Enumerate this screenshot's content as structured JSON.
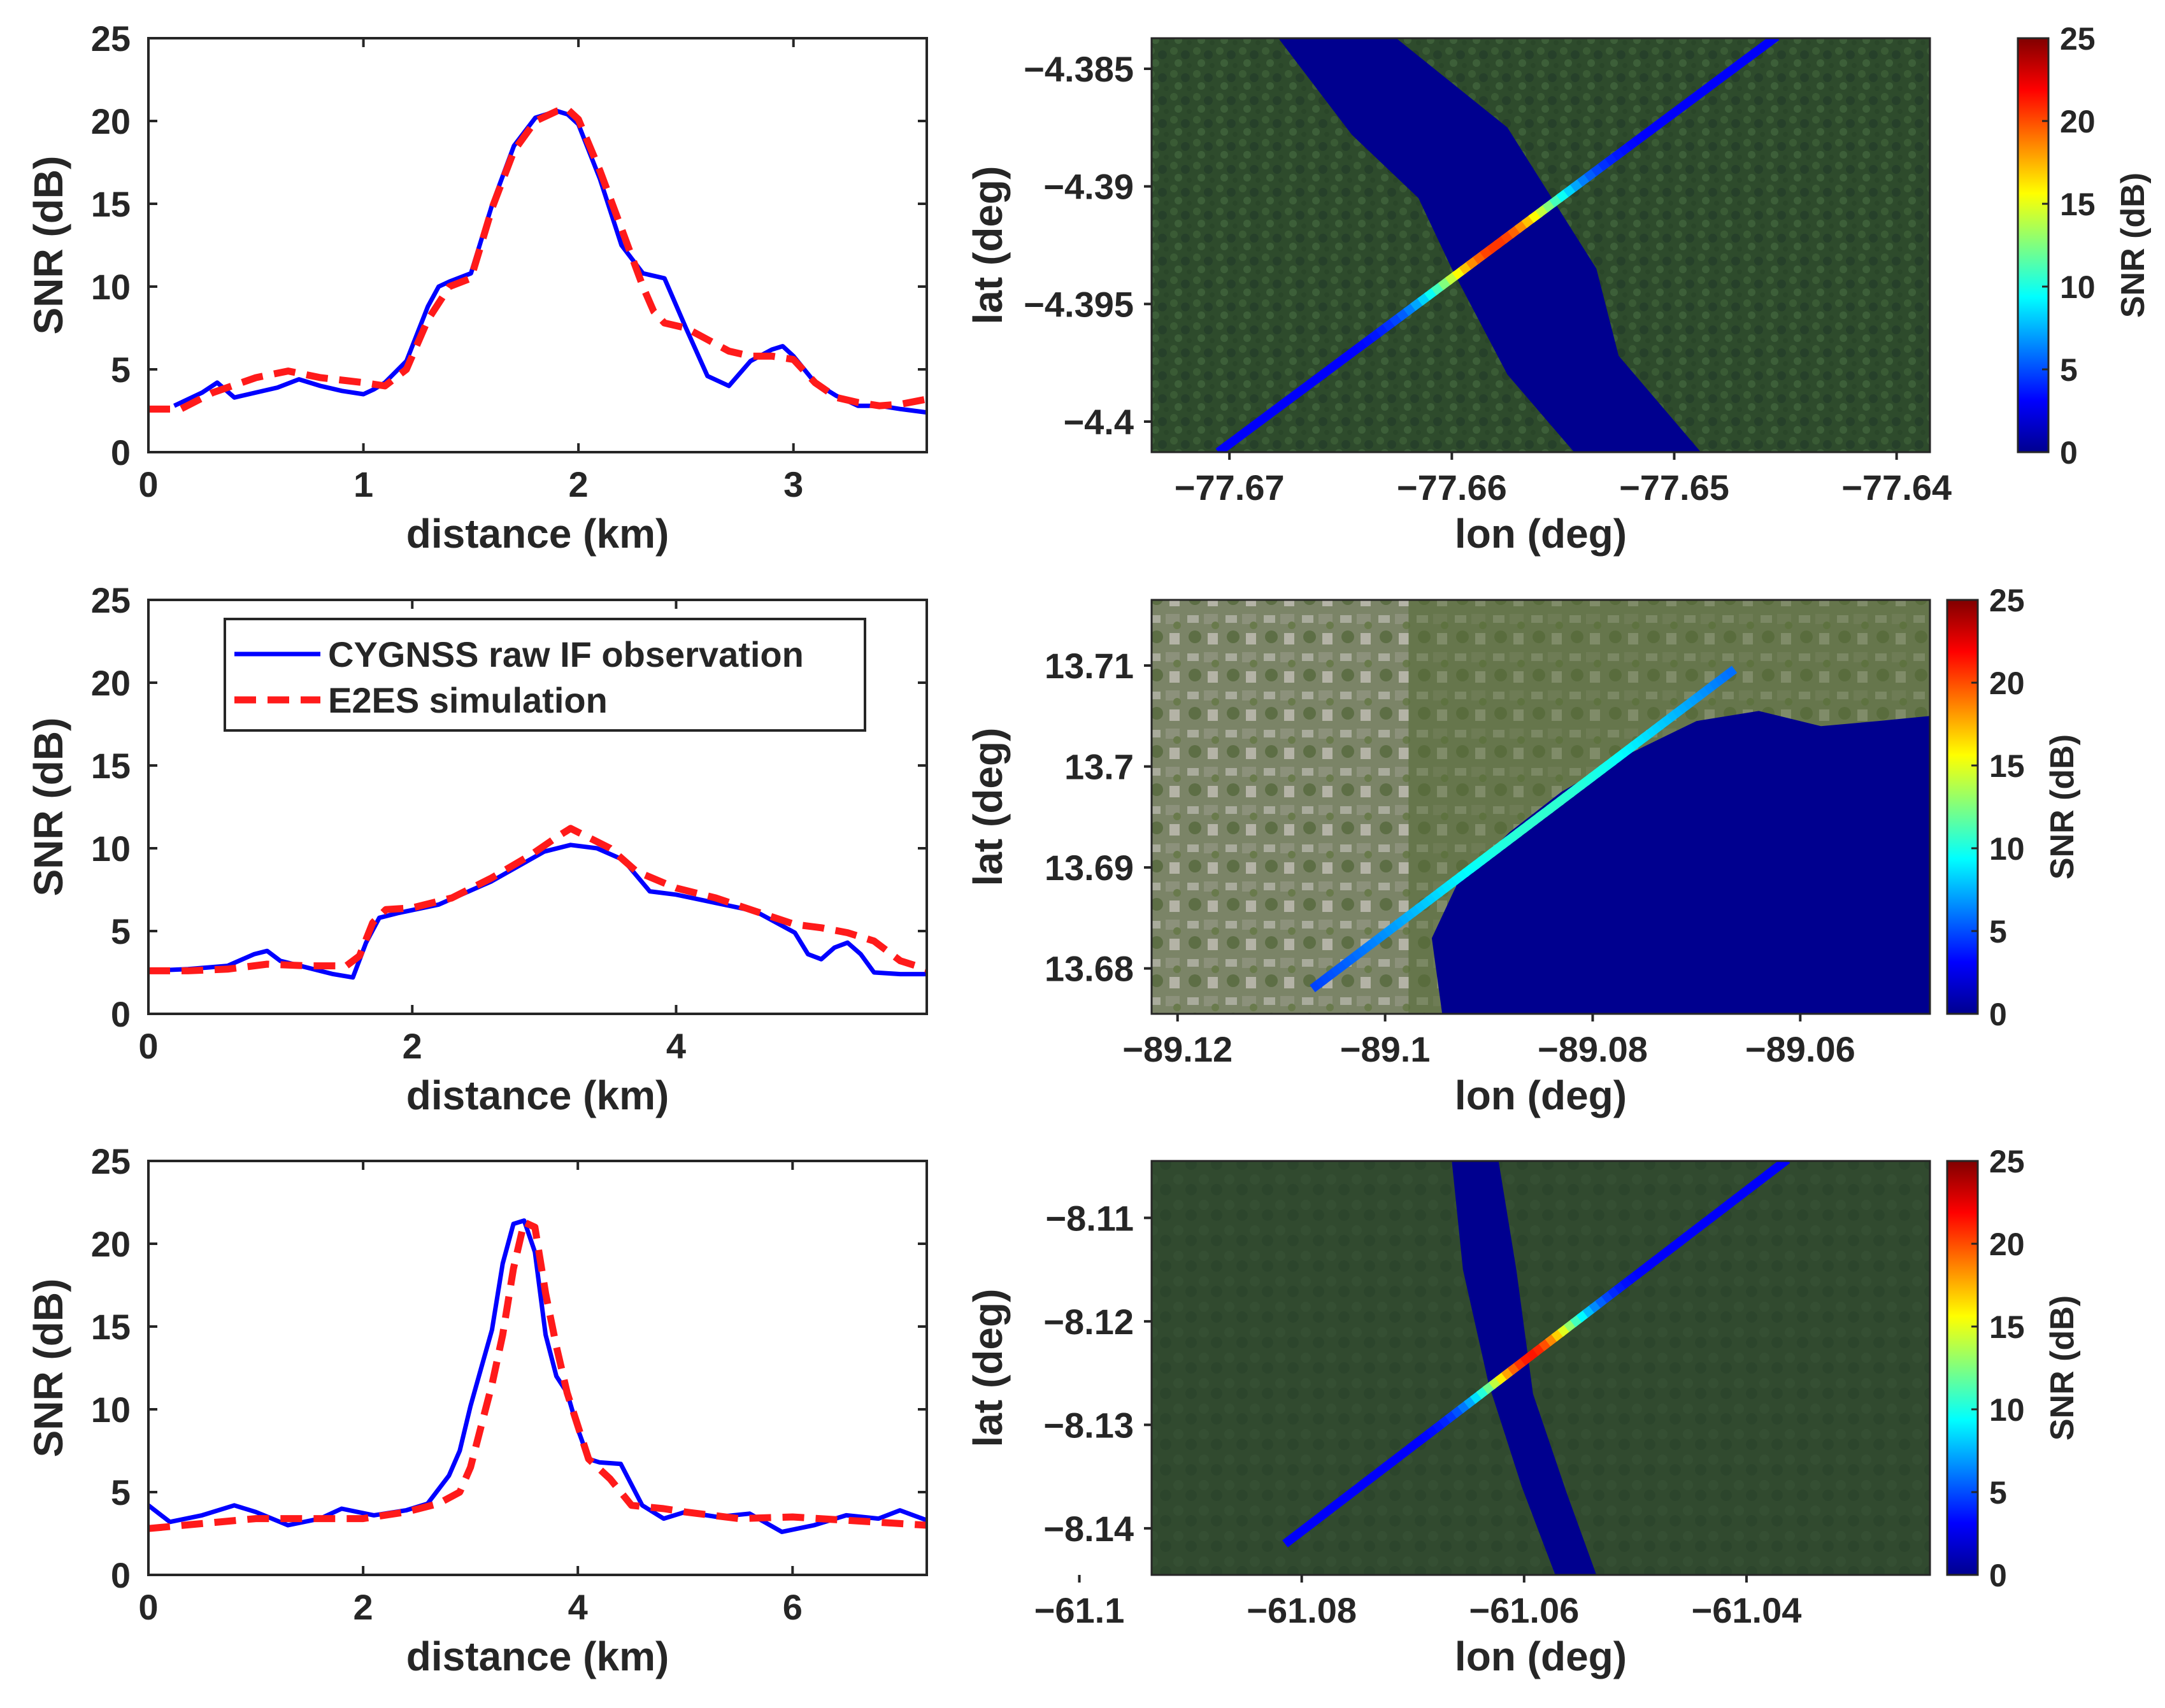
{
  "figure": {
    "colors": {
      "observation": "#0000ff",
      "simulation": "#ff1a1a",
      "water": "#00008f",
      "forest": "#2d4a2c",
      "urban": "#7d8566",
      "axis": "#262626"
    },
    "colormap": "jet"
  },
  "chart_data": [
    {
      "type": "line",
      "panel": "row1-left",
      "xlabel": "distance (km)",
      "ylabel": "SNR (dB)",
      "xlim": [
        0,
        3.62
      ],
      "ylim": [
        0,
        25
      ],
      "xticks": [
        "0",
        "1",
        "2",
        "3"
      ],
      "xtick_values": [
        0,
        1,
        2,
        3
      ],
      "yticks": [
        "0",
        "5",
        "10",
        "15",
        "20",
        "25"
      ],
      "ytick_values": [
        0,
        5,
        10,
        15,
        20,
        25
      ],
      "series": [
        {
          "name": "CYGNSS raw IF observation",
          "color": "#0000ff",
          "style": "solid",
          "x": [
            0.12,
            0.25,
            0.32,
            0.4,
            0.5,
            0.6,
            0.7,
            0.8,
            0.9,
            1.0,
            1.05,
            1.1,
            1.2,
            1.3,
            1.35,
            1.4,
            1.5,
            1.6,
            1.7,
            1.8,
            1.9,
            1.95,
            2.0,
            2.1,
            2.2,
            2.3,
            2.4,
            2.5,
            2.6,
            2.7,
            2.8,
            2.9,
            2.95,
            3.0,
            3.1,
            3.2,
            3.3,
            3.4,
            3.5,
            3.62
          ],
          "y": [
            2.8,
            3.6,
            4.2,
            3.3,
            3.6,
            3.9,
            4.4,
            4.0,
            3.7,
            3.5,
            3.8,
            4.2,
            5.5,
            8.8,
            10.0,
            10.3,
            10.8,
            15.0,
            18.5,
            20.2,
            20.6,
            20.4,
            19.8,
            16.5,
            12.5,
            10.8,
            10.5,
            7.5,
            4.6,
            4.0,
            5.5,
            6.2,
            6.4,
            5.8,
            4.2,
            3.4,
            2.8,
            2.8,
            2.6,
            2.4
          ]
        },
        {
          "name": "E2ES simulation",
          "color": "#ff1a1a",
          "style": "dashed",
          "x": [
            0.0,
            0.15,
            0.3,
            0.5,
            0.65,
            0.8,
            1.0,
            1.1,
            1.2,
            1.3,
            1.4,
            1.5,
            1.6,
            1.7,
            1.8,
            1.9,
            1.95,
            2.0,
            2.1,
            2.2,
            2.3,
            2.35,
            2.4,
            2.5,
            2.6,
            2.7,
            2.8,
            2.9,
            3.0,
            3.1,
            3.2,
            3.3,
            3.4,
            3.5,
            3.62
          ],
          "y": [
            2.6,
            2.6,
            3.6,
            4.5,
            4.9,
            4.5,
            4.2,
            4.0,
            5.0,
            8.0,
            10.0,
            10.5,
            14.8,
            18.2,
            20.0,
            20.6,
            20.7,
            20.1,
            17.0,
            13.5,
            10.0,
            8.5,
            7.8,
            7.5,
            6.8,
            6.1,
            5.8,
            5.8,
            5.6,
            4.2,
            3.3,
            3.0,
            2.8,
            2.9,
            3.2
          ]
        }
      ]
    },
    {
      "type": "heatmap",
      "panel": "row1-right",
      "description": "SNR track over satellite imagery",
      "xlabel": "lon (deg)",
      "ylabel": "lat (deg)",
      "xlim": [
        -77.6735,
        -77.6385
      ],
      "ylim": [
        -4.4013,
        -4.3837
      ],
      "xticks": [
        "-77.67",
        "-77.66",
        "-77.65",
        "-77.64"
      ],
      "xtick_values": [
        -77.67,
        -77.66,
        -77.65,
        -77.64
      ],
      "yticks": [
        "-4.385",
        "-4.39",
        "-4.395",
        "-4.4"
      ],
      "ytick_values": [
        -4.385,
        -4.39,
        -4.395,
        -4.4
      ],
      "colorbar": {
        "label": "SNR (dB)",
        "ticks": [
          "0",
          "5",
          "10",
          "15",
          "20",
          "25"
        ],
        "range": [
          0,
          25
        ]
      },
      "background": "forest",
      "water": [
        [
          -77.6678,
          -4.3837
        ],
        [
          -77.6625,
          -4.3837
        ],
        [
          -77.6575,
          -4.3875
        ],
        [
          -77.6535,
          -4.3935
        ],
        [
          -77.6525,
          -4.3972
        ],
        [
          -77.6488,
          -4.4013
        ],
        [
          -77.6545,
          -4.4013
        ],
        [
          -77.6575,
          -4.398
        ],
        [
          -77.66,
          -4.3935
        ],
        [
          -77.6615,
          -4.3905
        ],
        [
          -77.6645,
          -4.3878
        ]
      ],
      "track": {
        "start": [
          -77.6705,
          -4.4013
        ],
        "end": [
          -77.6455,
          -4.3837
        ],
        "peak_fraction": 0.5,
        "peak_snr": 20.6,
        "base_snr": 3.0,
        "width_fraction": 0.12
      }
    },
    {
      "type": "line",
      "panel": "row2-left",
      "xlabel": "distance (km)",
      "ylabel": "SNR (dB)",
      "xlim": [
        0,
        5.9
      ],
      "ylim": [
        0,
        25
      ],
      "xticks": [
        "0",
        "2",
        "4"
      ],
      "xtick_values": [
        0,
        2,
        4
      ],
      "yticks": [
        "0",
        "5",
        "10",
        "15",
        "20",
        "25"
      ],
      "ytick_values": [
        0,
        5,
        10,
        15,
        20,
        25
      ],
      "legend": {
        "placement": "top-left",
        "entries": [
          "CYGNSS raw IF observation",
          "E2ES simulation"
        ]
      },
      "series": [
        {
          "name": "CYGNSS raw IF observation",
          "color": "#0000ff",
          "style": "solid",
          "x": [
            0.0,
            0.3,
            0.6,
            0.8,
            0.9,
            1.0,
            1.2,
            1.4,
            1.55,
            1.65,
            1.75,
            1.9,
            2.2,
            2.6,
            3.0,
            3.2,
            3.4,
            3.6,
            3.8,
            4.0,
            4.3,
            4.6,
            4.9,
            5.0,
            5.1,
            5.2,
            5.3,
            5.4,
            5.5,
            5.7,
            5.9
          ],
          "y": [
            2.6,
            2.7,
            2.9,
            3.6,
            3.8,
            3.2,
            2.8,
            2.4,
            2.2,
            4.3,
            5.8,
            6.1,
            6.6,
            8.0,
            9.8,
            10.2,
            10.0,
            9.3,
            7.4,
            7.2,
            6.7,
            6.2,
            4.9,
            3.6,
            3.3,
            4.0,
            4.3,
            3.6,
            2.5,
            2.4,
            2.4
          ]
        },
        {
          "name": "E2ES simulation",
          "color": "#ff1a1a",
          "style": "dashed",
          "x": [
            0.0,
            0.3,
            0.6,
            0.9,
            1.2,
            1.5,
            1.6,
            1.7,
            1.8,
            2.0,
            2.3,
            2.6,
            2.9,
            3.1,
            3.2,
            3.3,
            3.5,
            3.7,
            4.0,
            4.3,
            4.6,
            4.9,
            5.1,
            5.3,
            5.5,
            5.7,
            5.9
          ],
          "y": [
            2.6,
            2.6,
            2.7,
            3.0,
            2.9,
            2.9,
            3.5,
            5.5,
            6.3,
            6.4,
            7.0,
            8.2,
            9.6,
            10.7,
            11.2,
            10.8,
            10.0,
            8.6,
            7.6,
            7.0,
            6.2,
            5.4,
            5.2,
            4.9,
            4.4,
            3.2,
            2.7
          ]
        }
      ]
    },
    {
      "type": "heatmap",
      "panel": "row2-right",
      "description": "SNR track over satellite imagery",
      "xlabel": "lon (deg)",
      "ylabel": "lat (deg)",
      "xlim": [
        -89.1225,
        -89.0475
      ],
      "ylim": [
        13.6755,
        13.7165
      ],
      "xticks": [
        "-89.12",
        "-89.1",
        "-89.08",
        "-89.06"
      ],
      "xtick_values": [
        -89.12,
        -89.1,
        -89.08,
        -89.06
      ],
      "yticks": [
        "13.71",
        "13.7",
        "13.69",
        "13.68"
      ],
      "ytick_values": [
        13.71,
        13.7,
        13.69,
        13.68
      ],
      "colorbar": {
        "label": "SNR (dB)",
        "ticks": [
          "0",
          "5",
          "10",
          "15",
          "20",
          "25"
        ],
        "range": [
          0,
          25
        ]
      },
      "background": "urban",
      "water": [
        [
          -89.0945,
          13.6755
        ],
        [
          -89.0955,
          13.683
        ],
        [
          -89.093,
          13.6885
        ],
        [
          -89.088,
          13.6935
        ],
        [
          -89.083,
          13.6975
        ],
        [
          -89.077,
          13.701
        ],
        [
          -89.07,
          13.7045
        ],
        [
          -89.064,
          13.7055
        ],
        [
          -89.058,
          13.704
        ],
        [
          -89.0525,
          13.7045
        ],
        [
          -89.0475,
          13.705
        ],
        [
          -89.0475,
          13.6755
        ]
      ],
      "track": {
        "start": [
          -89.107,
          13.678
        ],
        "end": [
          -89.0665,
          13.7095
        ],
        "peak_fraction": 0.55,
        "peak_snr": 10.5,
        "base_snr": 3.0,
        "width_fraction": 0.45
      }
    },
    {
      "type": "line",
      "panel": "row3-left",
      "xlabel": "distance (km)",
      "ylabel": "SNR (dB)",
      "xlim": [
        0,
        7.25
      ],
      "ylim": [
        0,
        25
      ],
      "xticks": [
        "0",
        "2",
        "4",
        "6"
      ],
      "xtick_values": [
        0,
        2,
        4,
        6
      ],
      "yticks": [
        "0",
        "5",
        "10",
        "15",
        "20",
        "25"
      ],
      "ytick_values": [
        0,
        5,
        10,
        15,
        20,
        25
      ],
      "series": [
        {
          "name": "CYGNSS raw IF observation",
          "color": "#0000ff",
          "style": "solid",
          "x": [
            0.0,
            0.2,
            0.5,
            0.8,
            1.0,
            1.3,
            1.6,
            1.8,
            2.1,
            2.4,
            2.6,
            2.8,
            2.9,
            3.0,
            3.1,
            3.2,
            3.3,
            3.4,
            3.5,
            3.6,
            3.7,
            3.8,
            3.9,
            4.0,
            4.1,
            4.2,
            4.4,
            4.6,
            4.8,
            5.0,
            5.3,
            5.6,
            5.9,
            6.2,
            6.5,
            6.8,
            7.0,
            7.25
          ],
          "y": [
            4.2,
            3.2,
            3.6,
            4.2,
            3.8,
            3.0,
            3.4,
            4.0,
            3.6,
            3.9,
            4.3,
            6.0,
            7.5,
            10.2,
            12.5,
            14.8,
            18.8,
            21.2,
            21.4,
            19.5,
            14.5,
            12.0,
            11.0,
            8.8,
            7.0,
            6.8,
            6.7,
            4.2,
            3.4,
            3.8,
            3.5,
            3.7,
            2.6,
            3.0,
            3.6,
            3.4,
            3.9,
            3.3
          ]
        },
        {
          "name": "E2ES simulation",
          "color": "#ff1a1a",
          "style": "dashed",
          "x": [
            0.0,
            0.5,
            1.0,
            1.5,
            2.0,
            2.4,
            2.7,
            2.9,
            3.0,
            3.1,
            3.2,
            3.3,
            3.4,
            3.5,
            3.6,
            3.7,
            3.8,
            3.9,
            4.0,
            4.1,
            4.3,
            4.5,
            4.8,
            5.0,
            5.5,
            6.0,
            6.5,
            7.0,
            7.25
          ],
          "y": [
            2.8,
            3.1,
            3.4,
            3.4,
            3.4,
            3.8,
            4.3,
            5.0,
            6.5,
            9.0,
            11.5,
            14.5,
            18.5,
            21.3,
            21.0,
            17.0,
            13.8,
            11.0,
            9.0,
            7.0,
            5.8,
            4.2,
            4.0,
            3.8,
            3.4,
            3.5,
            3.3,
            3.1,
            3.0
          ]
        }
      ]
    },
    {
      "type": "heatmap",
      "panel": "row3-right",
      "description": "SNR track over satellite imagery",
      "xlabel": "lon (deg)",
      "ylabel": "lat (deg)",
      "xlim": [
        -61.0935,
        -61.0235
      ],
      "ylim": [
        -8.1445,
        -8.1045
      ],
      "xticks": [
        "-61.1",
        "-61.08",
        "-61.06",
        "-61.04"
      ],
      "xtick_values": [
        -61.1,
        -61.08,
        -61.06,
        -61.04
      ],
      "yticks": [
        "-8.11",
        "-8.12",
        "-8.13",
        "-8.14"
      ],
      "ytick_values": [
        -8.11,
        -8.12,
        -8.13,
        -8.14
      ],
      "colorbar": {
        "label": "SNR (dB)",
        "ticks": [
          "0",
          "5",
          "10",
          "15",
          "20",
          "25"
        ],
        "range": [
          0,
          25
        ]
      },
      "background": "forest",
      "water": [
        [
          -61.0665,
          -8.1045
        ],
        [
          -61.0623,
          -8.1045
        ],
        [
          -61.0607,
          -8.115
        ],
        [
          -61.0592,
          -8.127
        ],
        [
          -61.0562,
          -8.1365
        ],
        [
          -61.0535,
          -8.1445
        ],
        [
          -61.0572,
          -8.1445
        ],
        [
          -61.0602,
          -8.136
        ],
        [
          -61.0632,
          -8.126
        ],
        [
          -61.0655,
          -8.115
        ]
      ],
      "track": {
        "start": [
          -61.0815,
          -8.1415
        ],
        "end": [
          -61.0365,
          -8.1045
        ],
        "peak_fraction": 0.49,
        "peak_snr": 21.4,
        "base_snr": 3.0,
        "width_fraction": 0.1
      }
    }
  ]
}
